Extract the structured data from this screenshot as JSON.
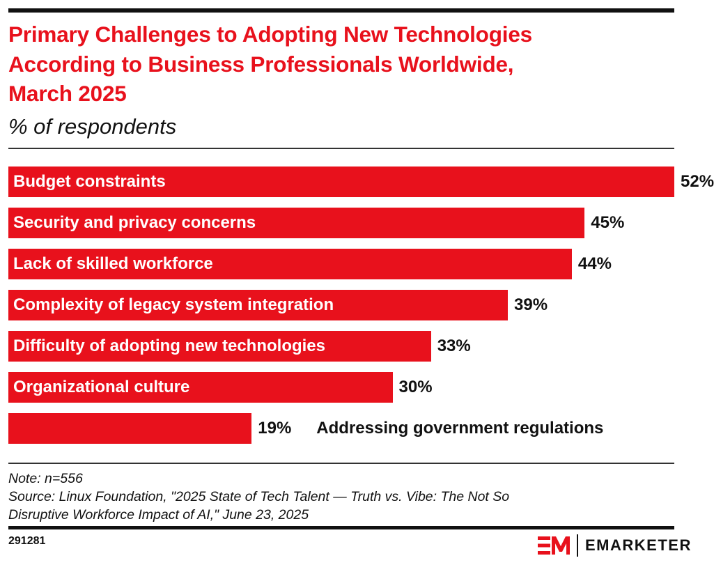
{
  "title_lines": [
    "Primary Challenges to Adopting New Technologies",
    "According to Business Professionals Worldwide,",
    "March 2025"
  ],
  "subtitle": "% of respondents",
  "chart_data": {
    "type": "bar",
    "orientation": "horizontal",
    "categories": [
      "Budget constraints",
      "Security and privacy concerns",
      "Lack of skilled workforce",
      "Complexity of legacy system integration",
      "Difficulty of adopting new technologies",
      "Organizational culture",
      "Addressing government regulations"
    ],
    "values": [
      52,
      45,
      44,
      39,
      33,
      30,
      19
    ],
    "value_labels": [
      "52%",
      "45%",
      "44%",
      "39%",
      "33%",
      "30%",
      "19%"
    ],
    "unit": "%",
    "bar_color": "#e8111c",
    "xlim": [
      0,
      52
    ],
    "grid": false
  },
  "note": "Note: n=556",
  "source_lines": [
    "Source: Linux Foundation, \"2025 State of Tech Talent — Truth vs. Vibe: The Not So",
    "Disruptive Workforce Impact of AI,\" June 23, 2025"
  ],
  "chart_id": "291281",
  "brand": {
    "logo_mark": "EM",
    "name": "EMARKETER",
    "color": "#e8111c"
  }
}
